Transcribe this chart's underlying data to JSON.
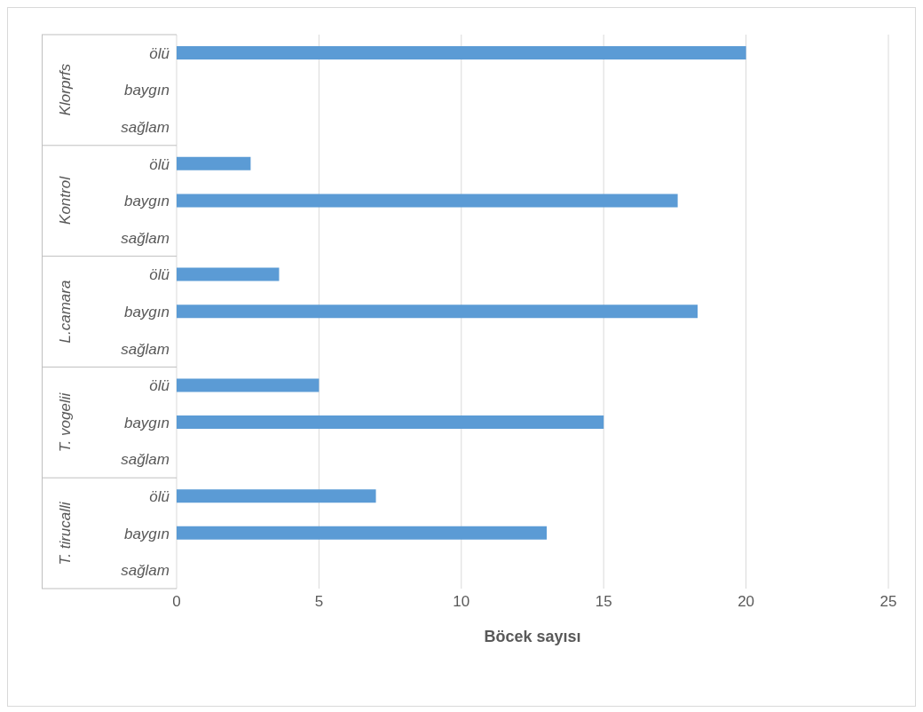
{
  "chart_data": {
    "type": "bar",
    "orientation": "horizontal",
    "xlabel": "Böcek sayısı",
    "categories": [
      "ölü",
      "baygın",
      "sağlam",
      "ölü",
      "baygın",
      "sağlam",
      "ölü",
      "baygın",
      "sağlam",
      "ölü",
      "baygın",
      "sağlam",
      "ölü",
      "baygın",
      "sağlam"
    ],
    "values": [
      20,
      0,
      0,
      2.6,
      17.6,
      0,
      3.6,
      18.3,
      0,
      5,
      15,
      0,
      7,
      13,
      0
    ],
    "color": "#5b9bd5",
    "annotations": [
      "Klorprfs",
      "Kontrol",
      "L.camara",
      "T. vogelii",
      "T. tirucalli"
    ],
    "xlim": [
      0,
      25
    ],
    "xticks": [
      0,
      5,
      10,
      15,
      20,
      25
    ],
    "grid": "x",
    "legend": false
  }
}
